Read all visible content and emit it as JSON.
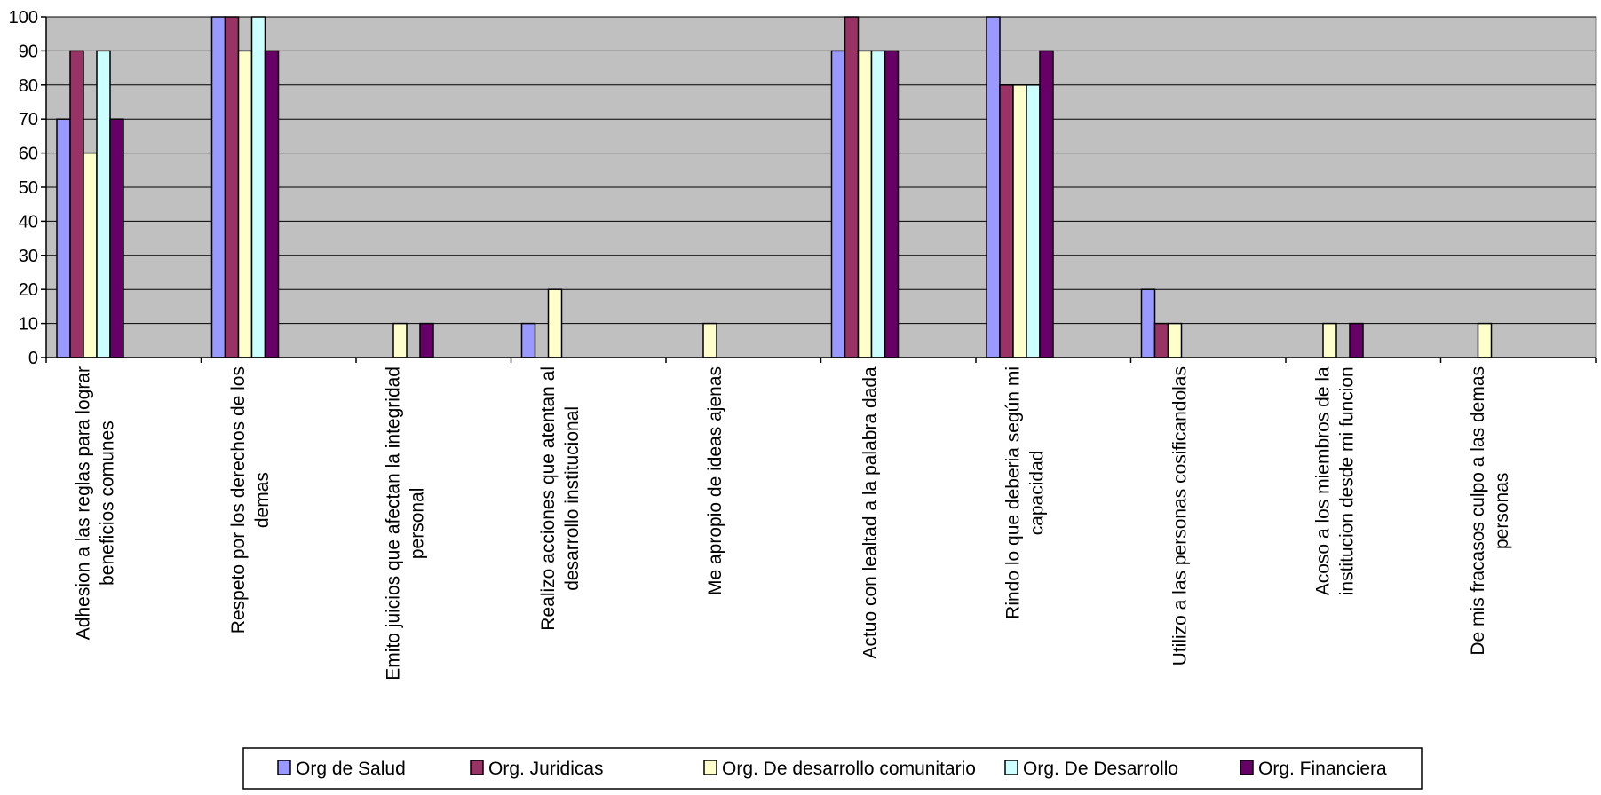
{
  "chart_data": {
    "type": "bar",
    "title": "",
    "xlabel": "",
    "ylabel": "",
    "ylim": [
      0,
      100
    ],
    "yticks": [
      0,
      10,
      20,
      30,
      40,
      50,
      60,
      70,
      80,
      90,
      100
    ],
    "grid": true,
    "legend_position": "bottom",
    "plot_background": "#c0c0c0",
    "categories": [
      [
        "Adhesion a las  reglas para lograr",
        "beneficios comunes"
      ],
      [
        "Respeto por los derechos de los",
        "demas"
      ],
      [
        "Emito juicios que afectan la integridad",
        "personal"
      ],
      [
        "Realizo acciones que atentan al",
        "desarrollo institucional"
      ],
      [
        "Me apropio de ideas ajenas"
      ],
      [
        "Actuo con lealtad a la palabra dada"
      ],
      [
        "Rindo lo que deberia según mi",
        "capacidad"
      ],
      [
        "Utilizo a las personas cosificandolas"
      ],
      [
        "Acoso a los miembros de la",
        "institucion desde mi funcion"
      ],
      [
        "De mis fracasos culpo a las demas",
        "personas"
      ]
    ],
    "series": [
      {
        "name": "Org de Salud",
        "color": "#9999ff",
        "values": [
          70,
          100,
          0,
          10,
          0,
          90,
          100,
          20,
          0,
          0
        ]
      },
      {
        "name": "Org. Juridicas",
        "color": "#993366",
        "values": [
          90,
          100,
          0,
          0,
          0,
          100,
          80,
          10,
          0,
          0
        ]
      },
      {
        "name": "Org. De desarrollo  comunitario",
        "color": "#ffffcc",
        "values": [
          60,
          90,
          10,
          20,
          10,
          90,
          80,
          10,
          10,
          10
        ]
      },
      {
        "name": "Org. De Desarrollo",
        "color": "#ccffff",
        "values": [
          90,
          100,
          0,
          0,
          0,
          90,
          80,
          0,
          0,
          0
        ]
      },
      {
        "name": "Org. Financiera",
        "color": "#660066",
        "values": [
          70,
          90,
          10,
          0,
          0,
          90,
          90,
          0,
          10,
          0
        ]
      }
    ]
  }
}
